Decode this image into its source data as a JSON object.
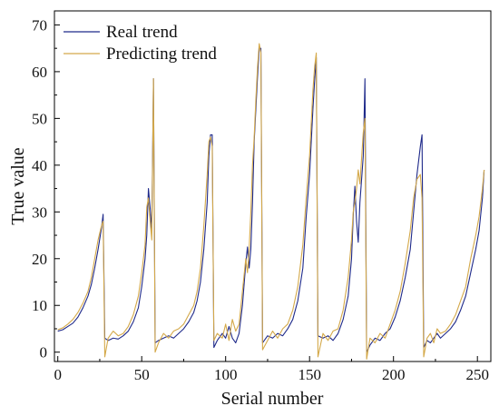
{
  "chart_data": {
    "type": "line",
    "xlabel": "Serial number",
    "ylabel": "True value",
    "xlim": [
      -2,
      258
    ],
    "ylim": [
      -2,
      73
    ],
    "xticks": [
      0,
      50,
      100,
      150,
      200,
      250
    ],
    "yticks": [
      0,
      10,
      20,
      30,
      40,
      50,
      60,
      70
    ],
    "grid": false,
    "legend_position": "top-left",
    "series": [
      {
        "name": "Real trend",
        "color": "#1f2a8a",
        "points": [
          [
            0,
            4.5
          ],
          [
            3,
            4.8
          ],
          [
            6,
            5.5
          ],
          [
            9,
            6.2
          ],
          [
            12,
            7.5
          ],
          [
            15,
            9.5
          ],
          [
            18,
            12
          ],
          [
            20,
            14.5
          ],
          [
            22,
            18
          ],
          [
            24,
            22
          ],
          [
            26,
            26.5
          ],
          [
            27,
            29.5
          ],
          [
            28,
            3
          ],
          [
            30,
            2.5
          ],
          [
            33,
            3
          ],
          [
            36,
            2.8
          ],
          [
            39,
            3.5
          ],
          [
            42,
            4.5
          ],
          [
            45,
            6.5
          ],
          [
            48,
            9.5
          ],
          [
            50,
            14
          ],
          [
            52,
            20
          ],
          [
            53,
            25
          ],
          [
            54,
            35
          ],
          [
            55,
            31
          ],
          [
            56,
            26
          ],
          [
            57,
            58.5
          ],
          [
            58,
            2
          ],
          [
            60,
            2.5
          ],
          [
            63,
            3
          ],
          [
            66,
            3.5
          ],
          [
            69,
            3
          ],
          [
            72,
            4
          ],
          [
            75,
            5
          ],
          [
            78,
            6.5
          ],
          [
            81,
            8.5
          ],
          [
            83,
            11
          ],
          [
            85,
            15
          ],
          [
            87,
            22
          ],
          [
            89,
            32
          ],
          [
            90,
            42
          ],
          [
            91,
            46.5
          ],
          [
            92,
            46.5
          ],
          [
            93,
            1
          ],
          [
            95,
            2.5
          ],
          [
            98,
            4
          ],
          [
            100,
            3
          ],
          [
            102,
            5.5
          ],
          [
            104,
            3
          ],
          [
            106,
            2
          ],
          [
            108,
            4
          ],
          [
            110,
            10
          ],
          [
            112,
            19
          ],
          [
            113,
            22.5
          ],
          [
            114,
            18
          ],
          [
            115,
            22
          ],
          [
            116,
            32
          ],
          [
            117,
            45
          ],
          [
            118,
            52
          ],
          [
            119,
            59
          ],
          [
            120,
            65
          ],
          [
            121,
            65
          ],
          [
            122,
            2
          ],
          [
            125,
            3.5
          ],
          [
            128,
            3
          ],
          [
            131,
            4
          ],
          [
            134,
            3.5
          ],
          [
            137,
            5
          ],
          [
            140,
            7
          ],
          [
            143,
            11
          ],
          [
            146,
            18
          ],
          [
            148,
            29
          ],
          [
            150,
            38
          ],
          [
            151,
            45
          ],
          [
            152,
            52
          ],
          [
            153,
            58
          ],
          [
            154,
            63
          ],
          [
            155,
            3.5
          ],
          [
            158,
            3
          ],
          [
            161,
            3.5
          ],
          [
            164,
            2.5
          ],
          [
            167,
            4
          ],
          [
            170,
            7
          ],
          [
            173,
            12
          ],
          [
            175,
            20
          ],
          [
            176,
            29
          ],
          [
            177,
            35.5
          ],
          [
            178,
            28
          ],
          [
            179,
            23.5
          ],
          [
            180,
            32
          ],
          [
            182,
            42
          ],
          [
            183,
            58.5
          ],
          [
            184,
            0
          ],
          [
            186,
            1.5
          ],
          [
            189,
            3
          ],
          [
            192,
            2.5
          ],
          [
            195,
            4
          ],
          [
            198,
            5
          ],
          [
            201,
            7.5
          ],
          [
            204,
            11
          ],
          [
            207,
            16
          ],
          [
            210,
            22
          ],
          [
            212,
            30
          ],
          [
            214,
            38
          ],
          [
            216,
            44
          ],
          [
            217,
            46.5
          ],
          [
            218,
            1
          ],
          [
            220,
            2.5
          ],
          [
            222,
            2
          ],
          [
            224,
            3
          ],
          [
            226,
            4
          ],
          [
            228,
            3
          ],
          [
            231,
            4
          ],
          [
            234,
            5
          ],
          [
            237,
            6.5
          ],
          [
            240,
            9
          ],
          [
            243,
            12
          ],
          [
            246,
            17
          ],
          [
            249,
            22
          ],
          [
            251,
            26
          ],
          [
            253,
            33
          ],
          [
            254,
            39
          ]
        ]
      },
      {
        "name": "Predicting trend",
        "color": "#d4a94a",
        "points": [
          [
            0,
            4.8
          ],
          [
            3,
            5.2
          ],
          [
            6,
            6
          ],
          [
            9,
            7
          ],
          [
            12,
            8.5
          ],
          [
            15,
            10.5
          ],
          [
            18,
            13
          ],
          [
            20,
            16
          ],
          [
            22,
            20
          ],
          [
            24,
            24
          ],
          [
            26,
            27
          ],
          [
            27,
            28
          ],
          [
            28,
            -1
          ],
          [
            30,
            3
          ],
          [
            33,
            4.5
          ],
          [
            36,
            3.5
          ],
          [
            39,
            4
          ],
          [
            42,
            5.5
          ],
          [
            45,
            8
          ],
          [
            48,
            12
          ],
          [
            50,
            17
          ],
          [
            52,
            23
          ],
          [
            53,
            31
          ],
          [
            54,
            33
          ],
          [
            55,
            28
          ],
          [
            56,
            24
          ],
          [
            57,
            58.5
          ],
          [
            58,
            0
          ],
          [
            60,
            2
          ],
          [
            63,
            4
          ],
          [
            66,
            3
          ],
          [
            69,
            4.5
          ],
          [
            72,
            5
          ],
          [
            75,
            6
          ],
          [
            78,
            8
          ],
          [
            81,
            10
          ],
          [
            83,
            13
          ],
          [
            85,
            18
          ],
          [
            87,
            27
          ],
          [
            89,
            38
          ],
          [
            90,
            45
          ],
          [
            91,
            46
          ],
          [
            92,
            44
          ],
          [
            93,
            2.5
          ],
          [
            95,
            4
          ],
          [
            98,
            3
          ],
          [
            100,
            6
          ],
          [
            102,
            2.5
          ],
          [
            104,
            7
          ],
          [
            106,
            4.5
          ],
          [
            108,
            6
          ],
          [
            110,
            13
          ],
          [
            112,
            20
          ],
          [
            113,
            17
          ],
          [
            114,
            22
          ],
          [
            115,
            30
          ],
          [
            116,
            40
          ],
          [
            117,
            46
          ],
          [
            118,
            54
          ],
          [
            119,
            61
          ],
          [
            120,
            66
          ],
          [
            121,
            64
          ],
          [
            122,
            0.5
          ],
          [
            125,
            2.5
          ],
          [
            128,
            4.5
          ],
          [
            131,
            3
          ],
          [
            134,
            5
          ],
          [
            137,
            6
          ],
          [
            140,
            9
          ],
          [
            143,
            14
          ],
          [
            146,
            23
          ],
          [
            148,
            33
          ],
          [
            150,
            42
          ],
          [
            151,
            49
          ],
          [
            152,
            56
          ],
          [
            153,
            61
          ],
          [
            154,
            64
          ],
          [
            155,
            -1
          ],
          [
            158,
            4
          ],
          [
            161,
            2.5
          ],
          [
            164,
            4.5
          ],
          [
            167,
            5
          ],
          [
            170,
            9
          ],
          [
            173,
            16
          ],
          [
            175,
            24
          ],
          [
            176,
            30
          ],
          [
            177,
            32
          ],
          [
            178,
            35
          ],
          [
            179,
            39
          ],
          [
            180,
            36
          ],
          [
            182,
            47
          ],
          [
            183,
            50
          ],
          [
            184,
            -1.5
          ],
          [
            186,
            3
          ],
          [
            189,
            2
          ],
          [
            192,
            4
          ],
          [
            195,
            3
          ],
          [
            198,
            6
          ],
          [
            201,
            9
          ],
          [
            204,
            13
          ],
          [
            207,
            19
          ],
          [
            210,
            26
          ],
          [
            212,
            33
          ],
          [
            214,
            37
          ],
          [
            216,
            38
          ],
          [
            217,
            33
          ],
          [
            218,
            -1
          ],
          [
            220,
            3
          ],
          [
            222,
            4
          ],
          [
            224,
            2
          ],
          [
            226,
            5
          ],
          [
            228,
            4
          ],
          [
            231,
            4.5
          ],
          [
            234,
            6
          ],
          [
            237,
            8
          ],
          [
            240,
            11
          ],
          [
            243,
            14
          ],
          [
            246,
            20
          ],
          [
            249,
            25
          ],
          [
            251,
            29
          ],
          [
            253,
            35
          ],
          [
            254,
            39
          ]
        ]
      }
    ]
  }
}
